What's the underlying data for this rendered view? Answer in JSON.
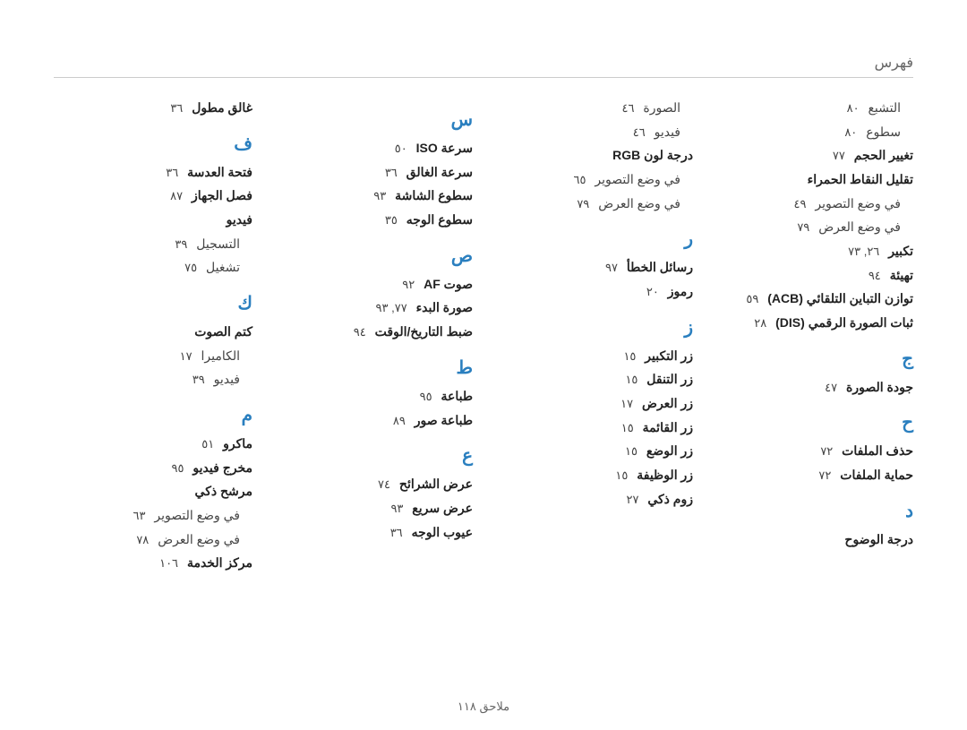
{
  "header": "فهرس",
  "footer": "ملاحق  ١١٨",
  "style": {
    "page_bg": "#ffffff",
    "section_color": "#2a7fbf",
    "rule_color": "#cccccc",
    "text_color": "#333333",
    "muted_color": "#666666",
    "section_fontsize_pt": 20,
    "entry_fontsize_pt": 14,
    "line_height": 1.9
  },
  "columns": [
    [
      {
        "type": "plain",
        "text": "التشبع",
        "page": "٨٠",
        "indent": true
      },
      {
        "type": "plain",
        "text": "سطوع",
        "page": "٨٠",
        "indent": true
      },
      {
        "type": "bold",
        "text": "تغيير الحجم",
        "page": "٧٧"
      },
      {
        "type": "bold",
        "text": "تقليل النقاط الحمراء"
      },
      {
        "type": "plain",
        "text": "في وضع التصوير",
        "page": "٤٩",
        "indent": true
      },
      {
        "type": "plain",
        "text": "في وضع العرض",
        "page": "٧٩",
        "indent": true
      },
      {
        "type": "bold",
        "text": "تكبير",
        "page": "٢٦, ٧٣"
      },
      {
        "type": "bold",
        "text": "تهيئة",
        "page": "٩٤"
      },
      {
        "type": "bold",
        "text": "توازن التباين التلقائي (ACB)",
        "page": "٥٩"
      },
      {
        "type": "bold",
        "text": "ثبات الصورة الرقمي (DIS)",
        "page": "٢٨"
      },
      {
        "type": "section",
        "text": "ج"
      },
      {
        "type": "bold",
        "text": "جودة الصورة",
        "page": "٤٧"
      },
      {
        "type": "section",
        "text": "ح"
      },
      {
        "type": "bold",
        "text": "حذف الملفات",
        "page": "٧٢"
      },
      {
        "type": "bold",
        "text": "حماية الملفات",
        "page": "٧٢"
      },
      {
        "type": "section",
        "text": "د"
      },
      {
        "type": "bold",
        "text": "درجة الوضوح"
      }
    ],
    [
      {
        "type": "plain",
        "text": "الصورة",
        "page": "٤٦",
        "indent": true
      },
      {
        "type": "plain",
        "text": "فيديو",
        "page": "٤٦",
        "indent": true
      },
      {
        "type": "bold",
        "text": "درجة لون RGB"
      },
      {
        "type": "plain",
        "text": "في وضع التصوير",
        "page": "٦٥",
        "indent": true
      },
      {
        "type": "plain",
        "text": "في وضع العرض",
        "page": "٧٩",
        "indent": true
      },
      {
        "type": "section",
        "text": "ر"
      },
      {
        "type": "bold",
        "text": "رسائل الخطأ",
        "page": "٩٧"
      },
      {
        "type": "bold",
        "text": "رموز",
        "page": "٢٠"
      },
      {
        "type": "section",
        "text": "ز"
      },
      {
        "type": "bold",
        "text": "زر التكبير",
        "page": "١٥"
      },
      {
        "type": "bold",
        "text": "زر التنقل",
        "page": "١٥"
      },
      {
        "type": "bold",
        "text": "زر العرض",
        "page": "١٧"
      },
      {
        "type": "bold",
        "text": "زر القائمة",
        "page": "١٥"
      },
      {
        "type": "bold",
        "text": "زر الوضع",
        "page": "١٥"
      },
      {
        "type": "bold",
        "text": "زر الوظيفة",
        "page": "١٥"
      },
      {
        "type": "bold",
        "text": "زوم ذكي",
        "page": "٢٧"
      }
    ],
    [
      {
        "type": "section",
        "text": "س"
      },
      {
        "type": "bold",
        "text": "سرعة ISO",
        "page": "٥٠"
      },
      {
        "type": "bold",
        "text": "سرعة الغالق",
        "page": "٣٦"
      },
      {
        "type": "bold",
        "text": "سطوع الشاشة",
        "page": "٩٣"
      },
      {
        "type": "bold",
        "text": "سطوع الوجه",
        "page": "٣٥"
      },
      {
        "type": "section",
        "text": "ص"
      },
      {
        "type": "bold",
        "text": "صوت AF",
        "page": "٩٢"
      },
      {
        "type": "bold",
        "text": "صورة البدء",
        "page": "٧٧, ٩٣"
      },
      {
        "type": "bold",
        "text": "ضبط التاريخ/الوقت",
        "page": "٩٤"
      },
      {
        "type": "section",
        "text": "ط"
      },
      {
        "type": "bold",
        "text": "طباعة",
        "page": "٩٥"
      },
      {
        "type": "bold",
        "text": "طباعة صور",
        "page": "٨٩"
      },
      {
        "type": "section",
        "text": "ع"
      },
      {
        "type": "bold",
        "text": "عرض الشرائح",
        "page": "٧٤"
      },
      {
        "type": "bold",
        "text": "عرض سريع",
        "page": "٩٣"
      },
      {
        "type": "bold",
        "text": "عيوب الوجه",
        "page": "٣٦"
      }
    ],
    [
      {
        "type": "bold",
        "text": "غالق مطول",
        "page": "٣٦"
      },
      {
        "type": "section",
        "text": "ف"
      },
      {
        "type": "bold",
        "text": "فتحة العدسة",
        "page": "٣٦"
      },
      {
        "type": "bold",
        "text": "فصل الجهاز",
        "page": "٨٧"
      },
      {
        "type": "bold",
        "text": "فيديو"
      },
      {
        "type": "plain",
        "text": "التسجيل",
        "page": "٣٩",
        "indent": true
      },
      {
        "type": "plain",
        "text": "تشغيل",
        "page": "٧٥",
        "indent": true
      },
      {
        "type": "section",
        "text": "ك"
      },
      {
        "type": "bold",
        "text": "كتم الصوت"
      },
      {
        "type": "plain",
        "text": "الكاميرا",
        "page": "١٧",
        "indent": true
      },
      {
        "type": "plain",
        "text": "فيديو",
        "page": "٣٩",
        "indent": true
      },
      {
        "type": "section",
        "text": "م"
      },
      {
        "type": "bold",
        "text": "ماكرو",
        "page": "٥١"
      },
      {
        "type": "bold",
        "text": "مخرج فيديو",
        "page": "٩٥"
      },
      {
        "type": "bold",
        "text": "مرشح ذكي"
      },
      {
        "type": "plain",
        "text": "في وضع التصوير",
        "page": "٦٣",
        "indent": true
      },
      {
        "type": "plain",
        "text": "في وضع العرض",
        "page": "٧٨",
        "indent": true
      },
      {
        "type": "bold",
        "text": "مركز الخدمة",
        "page": "١٠٦"
      }
    ]
  ]
}
